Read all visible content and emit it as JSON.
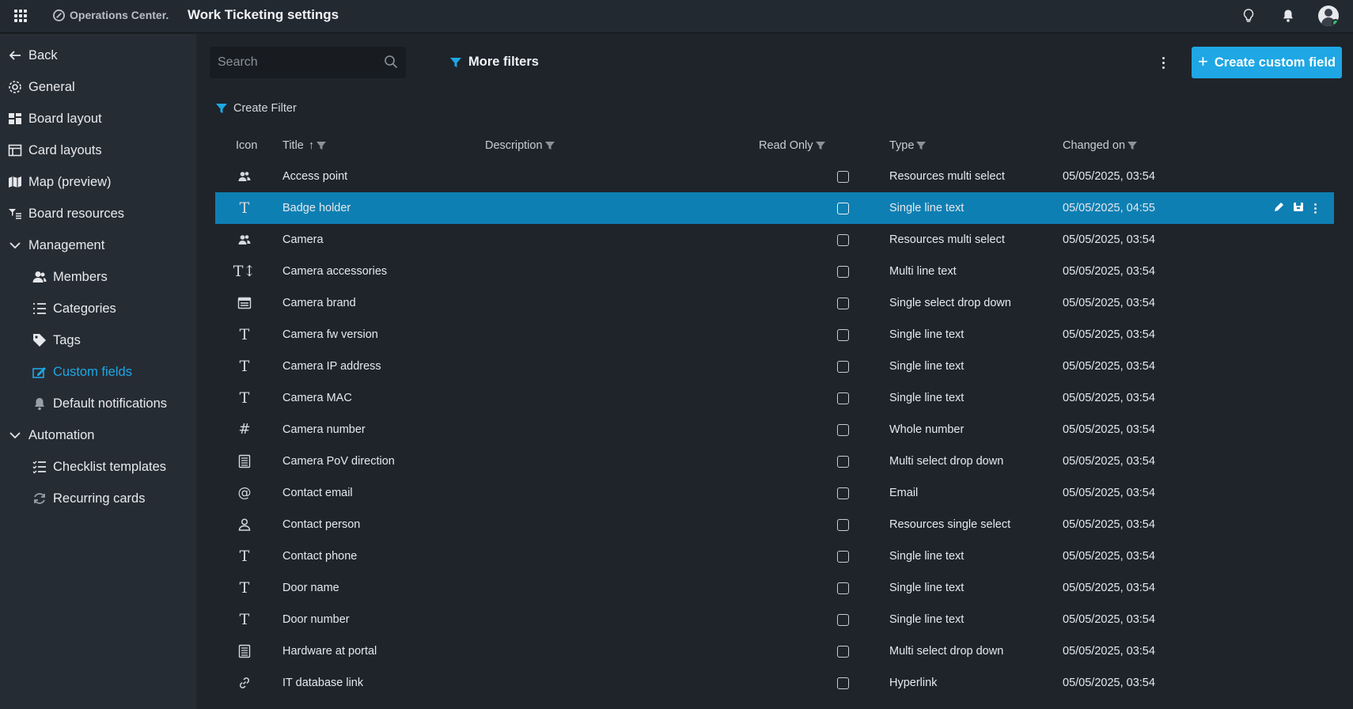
{
  "topbar": {
    "brand": "Operations Center.",
    "title": "Work Ticketing settings",
    "icons": [
      "apps-grid-icon",
      "lightbulb-icon",
      "bell-icon",
      "user-avatar-icon"
    ]
  },
  "sidebar": {
    "items": [
      {
        "label": "Back",
        "icon": "arrow-left-icon"
      },
      {
        "label": "General",
        "icon": "gear-icon"
      },
      {
        "label": "Board layout",
        "icon": "board-layout-icon"
      },
      {
        "label": "Card layouts",
        "icon": "card-layout-icon"
      },
      {
        "label": "Map (preview)",
        "icon": "map-icon"
      },
      {
        "label": "Board resources",
        "icon": "resources-icon"
      },
      {
        "label": "Management",
        "icon": "chevron-down-icon"
      },
      {
        "label": "Members",
        "icon": "members-icon"
      },
      {
        "label": "Categories",
        "icon": "list-icon"
      },
      {
        "label": "Tags",
        "icon": "tag-icon"
      },
      {
        "label": "Custom fields",
        "icon": "custom-fields-icon",
        "active": true
      },
      {
        "label": "Default notifications",
        "icon": "bell-icon"
      },
      {
        "label": "Automation",
        "icon": "chevron-down-icon"
      },
      {
        "label": "Checklist templates",
        "icon": "checklist-icon"
      },
      {
        "label": "Recurring cards",
        "icon": "recurring-icon"
      }
    ]
  },
  "toolbar": {
    "search_placeholder": "Search",
    "more_filters": "More filters",
    "create_custom_field": "Create custom field",
    "create_filter": "Create Filter"
  },
  "table": {
    "columns": {
      "icon": "Icon",
      "title": "Title",
      "title_sort": "↑",
      "description": "Description",
      "read_only": "Read Only",
      "type": "Type",
      "changed_on": "Changed on"
    },
    "rows": [
      {
        "icon": "people-icon",
        "title": "Access point",
        "read_only": false,
        "type": "Resources multi select",
        "changed_on": "05/05/2025, 03:54"
      },
      {
        "icon": "text-icon",
        "title": "Badge holder",
        "read_only": false,
        "type": "Single line text",
        "changed_on": "05/05/2025, 04:55",
        "selected": true
      },
      {
        "icon": "people-icon",
        "title": "Camera",
        "read_only": false,
        "type": "Resources multi select",
        "changed_on": "05/05/2025, 03:54"
      },
      {
        "icon": "multiline-text-icon",
        "title": "Camera accessories",
        "read_only": false,
        "type": "Multi line text",
        "changed_on": "05/05/2025, 03:54"
      },
      {
        "icon": "dropdown-icon",
        "title": "Camera brand",
        "read_only": false,
        "type": "Single select drop down",
        "changed_on": "05/05/2025, 03:54"
      },
      {
        "icon": "text-icon",
        "title": "Camera fw version",
        "read_only": false,
        "type": "Single line text",
        "changed_on": "05/05/2025, 03:54"
      },
      {
        "icon": "text-icon",
        "title": "Camera IP address",
        "read_only": false,
        "type": "Single line text",
        "changed_on": "05/05/2025, 03:54"
      },
      {
        "icon": "text-icon",
        "title": "Camera MAC",
        "read_only": false,
        "type": "Single line text",
        "changed_on": "05/05/2025, 03:54"
      },
      {
        "icon": "hash-icon",
        "title": "Camera number",
        "read_only": false,
        "type": "Whole number",
        "changed_on": "05/05/2025, 03:54"
      },
      {
        "icon": "multi-select-icon",
        "title": "Camera PoV direction",
        "read_only": false,
        "type": "Multi select drop down",
        "changed_on": "05/05/2025, 03:54"
      },
      {
        "icon": "at-icon",
        "title": "Contact email",
        "read_only": false,
        "type": "Email",
        "changed_on": "05/05/2025, 03:54"
      },
      {
        "icon": "person-icon",
        "title": "Contact person",
        "read_only": false,
        "type": "Resources single select",
        "changed_on": "05/05/2025, 03:54"
      },
      {
        "icon": "text-icon",
        "title": "Contact phone",
        "read_only": false,
        "type": "Single line text",
        "changed_on": "05/05/2025, 03:54"
      },
      {
        "icon": "text-icon",
        "title": "Door name",
        "read_only": false,
        "type": "Single line text",
        "changed_on": "05/05/2025, 03:54"
      },
      {
        "icon": "text-icon",
        "title": "Door number",
        "read_only": false,
        "type": "Single line text",
        "changed_on": "05/05/2025, 03:54"
      },
      {
        "icon": "multi-select-icon",
        "title": "Hardware at portal",
        "read_only": false,
        "type": "Multi select drop down",
        "changed_on": "05/05/2025, 03:54"
      },
      {
        "icon": "link-icon",
        "title": "IT database link",
        "read_only": false,
        "type": "Hyperlink",
        "changed_on": "05/05/2025, 03:54"
      }
    ],
    "row_actions": [
      "edit-icon",
      "archive-icon",
      "kebab-icon"
    ]
  },
  "colors": {
    "accent": "#1ea7e4",
    "selected_row": "#0e7fb3",
    "background": "#1f242b",
    "sidebar": "#262c34"
  }
}
